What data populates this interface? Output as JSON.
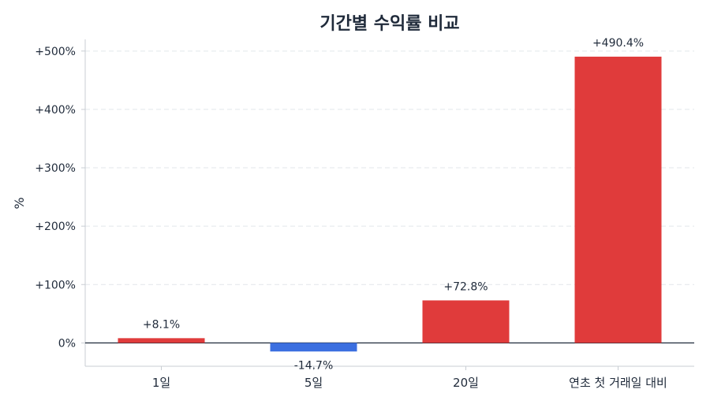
{
  "chart_data": {
    "type": "bar",
    "title": "기간별 수익률 비교",
    "xlabel": "",
    "ylabel": "%",
    "categories": [
      "1일",
      "5일",
      "20일",
      "연초 첫 거래일 대비"
    ],
    "values": [
      8.1,
      -14.7,
      72.8,
      490.4
    ],
    "value_labels": [
      "+8.1%",
      "-14.7%",
      "+72.8%",
      "+490.4%"
    ],
    "ylim": [
      -40,
      520
    ],
    "yticks": [
      0,
      100,
      200,
      300,
      400,
      500
    ],
    "ytick_labels": [
      "0%",
      "+100%",
      "+200%",
      "+300%",
      "+400%",
      "+500%"
    ],
    "grid": true,
    "colors": {
      "positive": "#e03b3b",
      "negative": "#3b6fe0",
      "axis": "#c8cdd3",
      "zero_line": "#1f2a3a",
      "grid": "#e2e6ea",
      "text": "#1f2a3a"
    }
  }
}
